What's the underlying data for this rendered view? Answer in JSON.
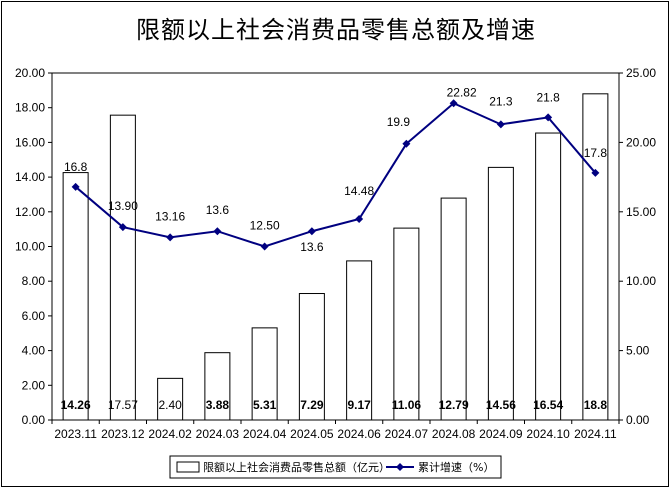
{
  "chart_data": {
    "type": "bar",
    "title": "限额以上社会消费品零售总额及增速",
    "categories": [
      "2023.11",
      "2023.12",
      "2024.02",
      "2024.03",
      "2024.04",
      "2024.05",
      "2024.06",
      "2024.07",
      "2024.08",
      "2024.09",
      "2024.10",
      "2024.11"
    ],
    "series": [
      {
        "name": "限额以上社会消费品零售总额（亿元）",
        "type": "bar",
        "axis": "left",
        "values": [
          14.26,
          17.57,
          2.4,
          3.88,
          5.31,
          7.29,
          9.17,
          11.06,
          12.79,
          14.56,
          16.54,
          18.8
        ],
        "labels": [
          "14.26",
          "17.57",
          "2.40",
          "3.88",
          "5.31",
          "7.29",
          "9.17",
          "11.06",
          "12.79",
          "14.56",
          "16.54",
          "18.8"
        ],
        "color": "#ffffff",
        "border": "#000000"
      },
      {
        "name": "累计增速（%）",
        "type": "line",
        "axis": "right",
        "values": [
          16.8,
          13.9,
          13.16,
          13.6,
          12.5,
          13.6,
          14.48,
          19.9,
          22.82,
          21.3,
          21.8,
          17.8
        ],
        "labels": [
          "16.8",
          "13.90",
          "13.16",
          "13.6",
          "12.50",
          "13.6",
          "14.48",
          "19.9",
          "22.82",
          "21.3",
          "21.8",
          "17.8"
        ],
        "color": "#000080"
      }
    ],
    "y_left": {
      "min": 0,
      "max": 20,
      "step": 2,
      "ticks": [
        "0.00",
        "2.00",
        "4.00",
        "6.00",
        "8.00",
        "10.00",
        "12.00",
        "14.00",
        "16.00",
        "18.00",
        "20.00"
      ]
    },
    "y_right": {
      "min": 0,
      "max": 25,
      "step": 5,
      "ticks": [
        "0.00",
        "5.00",
        "10.00",
        "15.00",
        "20.00",
        "25.00"
      ]
    },
    "grid": false,
    "legend": "bottom"
  }
}
